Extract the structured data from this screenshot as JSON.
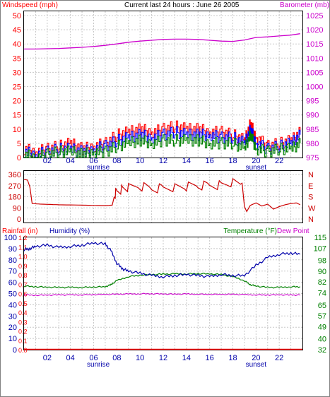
{
  "header": {
    "windspeed_label": "Windspeed (mph)",
    "title": "Current last 24 hours : June 26 2005",
    "barometer_label": "Barometer (mb)",
    "rainfall_label": "Rainfall (in)",
    "humidity_label": "Humidity (%)",
    "temperature_label": "Temperature (°F)",
    "dewpoint_label": "Dew Point"
  },
  "colors": {
    "windspeed": "#ff0000",
    "gust": "#ff0000",
    "wind_blue": "#0000ff",
    "wind_green": "#008000",
    "barometer": "#cc00cc",
    "direction": "#cc0000",
    "humidity": "#0000aa",
    "temperature": "#008000",
    "dewpoint": "#cc00cc",
    "rainfall": "#ff0000",
    "time_axis": "#0000aa",
    "grid": "#c8c8c8"
  },
  "time_axis": {
    "labels": [
      "02",
      "04",
      "06",
      "08",
      "10",
      "12",
      "14",
      "16",
      "18",
      "20",
      "22"
    ],
    "sunrise_label": "sunrise",
    "sunset_label": "sunset"
  },
  "chart_data": [
    {
      "type": "line",
      "name": "wind-barometer",
      "x_unit": "hour",
      "xlim": [
        0,
        24
      ],
      "left_axis": {
        "label": "Windspeed (mph)",
        "ticks": [
          0,
          5,
          10,
          15,
          20,
          25,
          30,
          35,
          40,
          45,
          50
        ],
        "ylim": [
          0,
          50
        ]
      },
      "right_axis": {
        "label": "Barometer (mb)",
        "ticks": [
          975,
          980,
          985,
          990,
          995,
          1000,
          1005,
          1010,
          1015,
          1020,
          1025
        ],
        "ylim": [
          975,
          1025
        ]
      },
      "series": [
        {
          "axis": "right",
          "x": [
            0,
            1,
            2,
            3,
            4,
            5,
            6,
            7,
            8,
            9,
            10,
            11,
            12,
            13,
            14,
            15,
            16,
            17,
            18,
            19,
            20,
            21,
            22,
            23,
            23.8
          ],
          "values": [
            1013.2,
            1013.2,
            1013.3,
            1013.4,
            1013.6,
            1013.8,
            1014.1,
            1014.5,
            1015.0,
            1015.6,
            1016.0,
            1016.3,
            1016.6,
            1016.7,
            1016.7,
            1016.6,
            1016.3,
            1016.0,
            1015.9,
            1016.4,
            1017.3,
            1017.5,
            1017.8,
            1018.1,
            1018.6
          ]
        },
        {
          "axis": "left",
          "x": [
            0,
            1,
            2,
            3,
            4,
            5,
            6,
            7,
            8,
            9,
            10,
            11,
            12,
            13,
            14,
            15,
            16,
            17,
            18,
            19,
            19.5,
            20,
            21,
            22,
            23,
            23.8
          ],
          "values": [
            3,
            2,
            3,
            4,
            5,
            3,
            4,
            5,
            8,
            9,
            10,
            9,
            10,
            11,
            10,
            10,
            9,
            9,
            8,
            6,
            12,
            7,
            4,
            5,
            6,
            9
          ]
        },
        {
          "axis": "left",
          "x": [
            0,
            1,
            2,
            3,
            4,
            5,
            6,
            7,
            8,
            9,
            10,
            11,
            12,
            13,
            14,
            15,
            16,
            17,
            18,
            19,
            19.5,
            20,
            21,
            22,
            23,
            23.8
          ],
          "values": [
            2,
            1,
            2,
            3,
            3,
            2,
            3,
            4,
            6,
            7,
            8,
            7,
            8,
            9,
            8,
            8,
            8,
            7,
            7,
            5,
            10,
            5,
            3,
            4,
            5,
            8
          ]
        },
        {
          "axis": "left",
          "x": [
            0,
            1,
            2,
            3,
            4,
            5,
            6,
            7,
            8,
            9,
            10,
            11,
            12,
            13,
            14,
            15,
            16,
            17,
            18,
            19,
            19.5,
            20,
            21,
            22,
            23,
            23.8
          ],
          "values": [
            1,
            0,
            1,
            2,
            2,
            1,
            2,
            2,
            4,
            5,
            6,
            5,
            6,
            6,
            6,
            6,
            5,
            5,
            5,
            3,
            8,
            3,
            2,
            3,
            3,
            5
          ]
        }
      ]
    },
    {
      "type": "line",
      "name": "wind-direction",
      "x_unit": "hour",
      "xlim": [
        0,
        24
      ],
      "left_axis": {
        "ticks": [
          0,
          90,
          180,
          270,
          360
        ],
        "ylim": [
          0,
          360
        ]
      },
      "right_axis": {
        "ticks": [
          "N",
          "W",
          "S",
          "E",
          "N"
        ]
      },
      "series": [
        {
          "x": [
            0,
            0.3,
            0.5,
            0.7,
            1.5,
            3,
            5,
            6,
            7,
            7.6,
            7.8,
            8.0,
            8.5,
            9,
            10,
            11,
            12,
            13,
            14,
            15,
            16,
            17,
            18,
            18.8,
            19.0,
            19.2,
            19.5,
            20,
            20.5,
            21,
            21.5,
            22,
            22.5,
            23,
            23.5,
            23.8
          ],
          "values": [
            320,
            315,
            260,
            125,
            120,
            115,
            112,
            110,
            108,
            112,
            190,
            230,
            240,
            250,
            265,
            245,
            250,
            258,
            262,
            270,
            272,
            275,
            290,
            290,
            100,
            60,
            110,
            130,
            105,
            120,
            80,
            100,
            115,
            125,
            130,
            115
          ]
        }
      ]
    },
    {
      "type": "line",
      "name": "humidity-temperature",
      "x_unit": "hour",
      "xlim": [
        0,
        24
      ],
      "left_axis": {
        "label": "Humidity (%)",
        "ticks": [
          0,
          10,
          20,
          30,
          40,
          50,
          60,
          70,
          80,
          90,
          100
        ],
        "ylim": [
          0,
          100
        ]
      },
      "rain_axis": {
        "label": "Rainfall (in)",
        "ticks": [
          0.0,
          0.1,
          0.2,
          0.3,
          0.4,
          0.5,
          0.6,
          0.7,
          0.8,
          0.9,
          1.0,
          1.1,
          1.2
        ]
      },
      "right_axis": {
        "label": "Temperature (°F)",
        "ticks": [
          32,
          40,
          49,
          57,
          65,
          74,
          82,
          90,
          98,
          107,
          115
        ],
        "ylim": [
          32,
          115
        ]
      },
      "series": [
        {
          "axis": "left",
          "x": [
            0,
            0.5,
            1,
            2,
            3,
            4,
            5,
            6,
            7,
            7.5,
            8,
            8.5,
            9,
            10,
            11,
            12,
            13,
            14,
            15,
            16,
            17,
            18,
            19,
            20,
            21,
            22,
            23,
            23.8
          ],
          "values": [
            89,
            90,
            92,
            93,
            91,
            92,
            93,
            95,
            94,
            88,
            77,
            72,
            70,
            68,
            66,
            65,
            66,
            67,
            66,
            65,
            67,
            66,
            66,
            75,
            82,
            85,
            86,
            85
          ]
        },
        {
          "axis": "right",
          "x": [
            0,
            1,
            2,
            3,
            4,
            5,
            6,
            7,
            7.5,
            8,
            9,
            10,
            11,
            12,
            13,
            14,
            15,
            16,
            17,
            18,
            19,
            19.5,
            20,
            21,
            22,
            23,
            23.8
          ],
          "values": [
            79,
            78.5,
            78.2,
            78,
            78,
            78,
            78.3,
            78.5,
            80,
            83,
            86,
            87,
            87.5,
            87.8,
            88,
            88,
            88.2,
            88,
            87.5,
            86,
            83,
            80,
            79,
            78,
            78,
            78.5,
            78.5
          ]
        },
        {
          "axis": "right",
          "x": [
            0,
            1,
            2,
            3,
            4,
            5,
            6,
            7,
            8,
            9,
            10,
            11,
            12,
            13,
            14,
            15,
            16,
            17,
            18,
            19,
            20,
            21,
            22,
            23,
            23.8
          ],
          "values": [
            72.5,
            72.2,
            72.3,
            72.5,
            72.4,
            72.5,
            72.7,
            72.8,
            73.0,
            73.1,
            73.3,
            73.3,
            73.2,
            73.0,
            73.1,
            73.0,
            72.9,
            72.8,
            72.9,
            72.6,
            72.5,
            72.4,
            72.5,
            72.4,
            72.3
          ]
        },
        {
          "axis": "rain",
          "x": [
            0,
            23.8
          ],
          "values": [
            0,
            0
          ]
        }
      ]
    }
  ]
}
